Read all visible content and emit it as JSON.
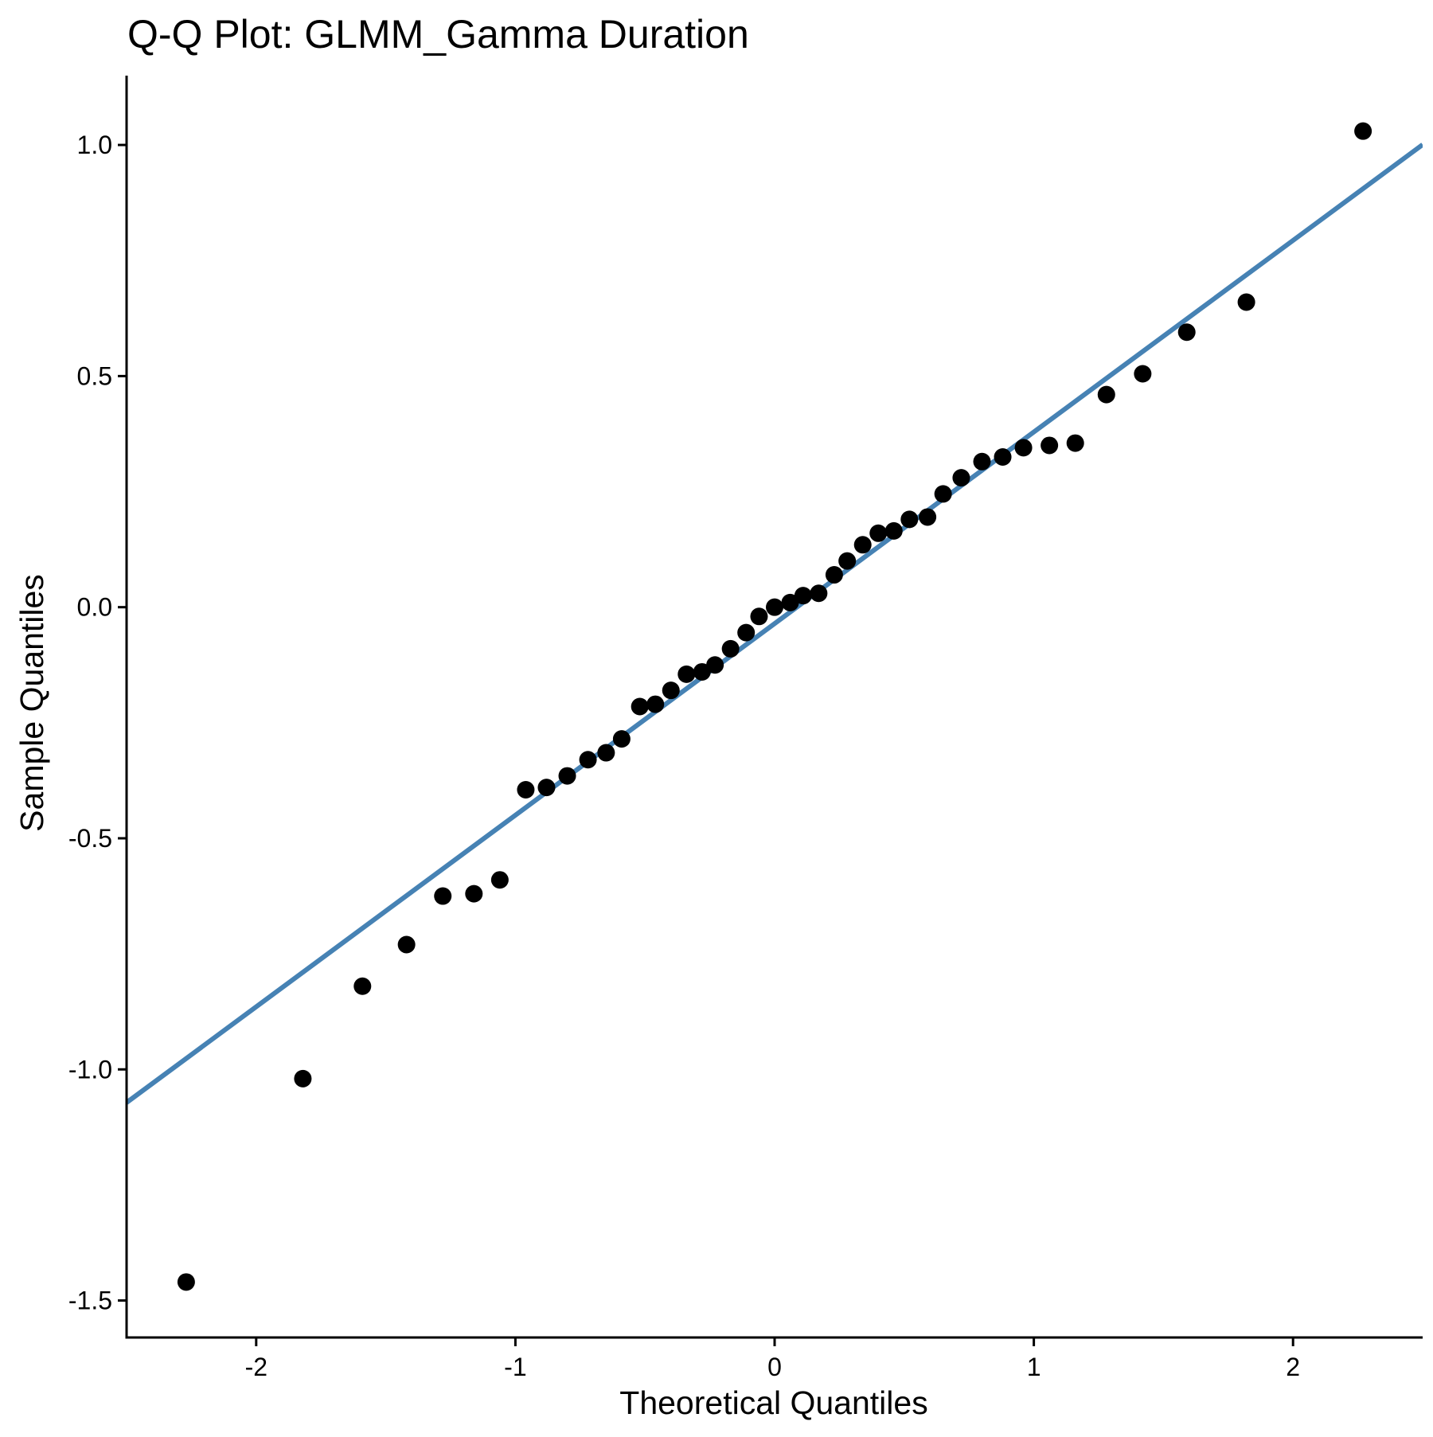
{
  "chart_data": {
    "type": "scatter",
    "title": "Q-Q Plot: GLMM_Gamma Duration",
    "xlabel": "Theoretical Quantiles",
    "ylabel": "Sample Quantiles",
    "xlim": [
      -2.5,
      2.5
    ],
    "ylim": [
      -1.58,
      1.15
    ],
    "grid": false,
    "legend": "none",
    "x_ticks": [
      {
        "value": -2,
        "label": "-2"
      },
      {
        "value": -1,
        "label": "-1"
      },
      {
        "value": 0,
        "label": "0"
      },
      {
        "value": 1,
        "label": "1"
      },
      {
        "value": 2,
        "label": "2"
      }
    ],
    "y_ticks": [
      {
        "value": -1.5,
        "label": "-1.5"
      },
      {
        "value": -1.0,
        "label": "-1.0"
      },
      {
        "value": -0.5,
        "label": "-0.5"
      },
      {
        "value": 0.0,
        "label": "0.0"
      },
      {
        "value": 0.5,
        "label": "0.5"
      },
      {
        "value": 1.0,
        "label": "1.0"
      }
    ],
    "reference_line": {
      "slope": 0.4145,
      "intercept": -0.0355,
      "color": "#4682B4"
    },
    "point_color": "#000000",
    "points": [
      {
        "x": -2.27,
        "y": -1.46
      },
      {
        "x": -1.82,
        "y": -1.02
      },
      {
        "x": -1.59,
        "y": -0.82
      },
      {
        "x": -1.42,
        "y": -0.73
      },
      {
        "x": -1.28,
        "y": -0.625
      },
      {
        "x": -1.16,
        "y": -0.62
      },
      {
        "x": -1.06,
        "y": -0.59
      },
      {
        "x": -0.96,
        "y": -0.395
      },
      {
        "x": -0.88,
        "y": -0.39
      },
      {
        "x": -0.8,
        "y": -0.365
      },
      {
        "x": -0.72,
        "y": -0.33
      },
      {
        "x": -0.65,
        "y": -0.315
      },
      {
        "x": -0.59,
        "y": -0.285
      },
      {
        "x": -0.52,
        "y": -0.215
      },
      {
        "x": -0.46,
        "y": -0.21
      },
      {
        "x": -0.4,
        "y": -0.18
      },
      {
        "x": -0.34,
        "y": -0.145
      },
      {
        "x": -0.28,
        "y": -0.14
      },
      {
        "x": -0.23,
        "y": -0.125
      },
      {
        "x": -0.17,
        "y": -0.09
      },
      {
        "x": -0.11,
        "y": -0.055
      },
      {
        "x": -0.06,
        "y": -0.02
      },
      {
        "x": 0.0,
        "y": 0.0
      },
      {
        "x": 0.06,
        "y": 0.01
      },
      {
        "x": 0.11,
        "y": 0.025
      },
      {
        "x": 0.17,
        "y": 0.03
      },
      {
        "x": 0.23,
        "y": 0.07
      },
      {
        "x": 0.28,
        "y": 0.1
      },
      {
        "x": 0.34,
        "y": 0.135
      },
      {
        "x": 0.4,
        "y": 0.16
      },
      {
        "x": 0.46,
        "y": 0.165
      },
      {
        "x": 0.52,
        "y": 0.19
      },
      {
        "x": 0.59,
        "y": 0.195
      },
      {
        "x": 0.65,
        "y": 0.245
      },
      {
        "x": 0.72,
        "y": 0.28
      },
      {
        "x": 0.8,
        "y": 0.315
      },
      {
        "x": 0.88,
        "y": 0.325
      },
      {
        "x": 0.96,
        "y": 0.345
      },
      {
        "x": 1.06,
        "y": 0.35
      },
      {
        "x": 1.16,
        "y": 0.355
      },
      {
        "x": 1.28,
        "y": 0.46
      },
      {
        "x": 1.42,
        "y": 0.505
      },
      {
        "x": 1.59,
        "y": 0.595
      },
      {
        "x": 1.82,
        "y": 0.66
      },
      {
        "x": 2.27,
        "y": 1.03
      }
    ]
  }
}
